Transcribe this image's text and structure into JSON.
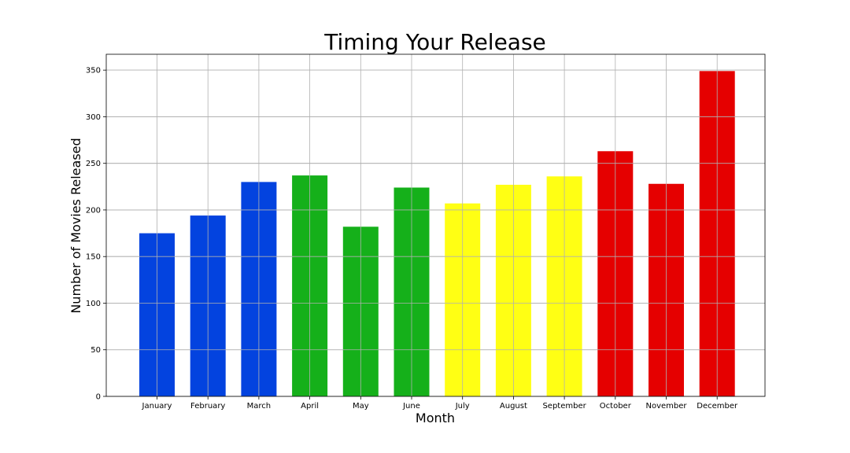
{
  "chart_data": {
    "type": "bar",
    "title": "Timing Your Release",
    "xlabel": "Month",
    "ylabel": "Number of Movies Released",
    "categories": [
      "January",
      "February",
      "March",
      "April",
      "May",
      "June",
      "July",
      "August",
      "September",
      "October",
      "November",
      "December"
    ],
    "values": [
      175,
      194,
      230,
      237,
      182,
      224,
      207,
      227,
      236,
      263,
      228,
      349
    ],
    "colors": [
      "#0343df",
      "#0343df",
      "#0343df",
      "#15b01a",
      "#15b01a",
      "#15b01a",
      "#ffff14",
      "#ffff14",
      "#ffff14",
      "#e50000",
      "#e50000",
      "#e50000"
    ],
    "ylim": [
      0,
      367
    ],
    "yticks": [
      0,
      50,
      100,
      150,
      200,
      250,
      300,
      350
    ],
    "grid": true,
    "legend": "none"
  }
}
